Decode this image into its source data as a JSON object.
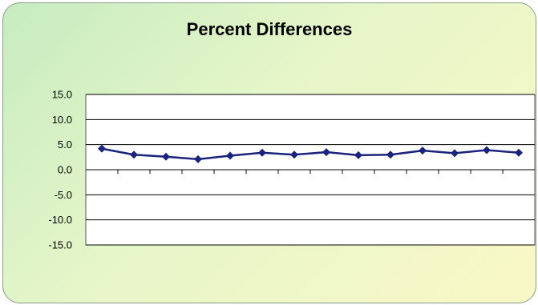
{
  "chart_data": {
    "type": "line",
    "title": "Percent Differences",
    "xlabel": "",
    "ylabel": "",
    "x": [
      1,
      2,
      3,
      4,
      5,
      6,
      7,
      8,
      9,
      10,
      11,
      12,
      13,
      14
    ],
    "series": [
      {
        "values": [
          4.2,
          3.0,
          2.6,
          2.1,
          2.8,
          3.4,
          3.0,
          3.5,
          2.9,
          3.0,
          3.8,
          3.3,
          3.9,
          3.4
        ],
        "color": "#1a237e",
        "marker": "diamond"
      }
    ],
    "ylim": [
      -15,
      15
    ],
    "yticks": [
      "15.0",
      "10.0",
      "5.0",
      "0.0",
      "-5.0",
      "-10.0",
      "-15.0"
    ],
    "grid": true,
    "legend": "none",
    "colors": {
      "background_start": "#c6ecc0",
      "background_end": "#f9f8c6",
      "plot_area": "#ffffff",
      "gridline": "#000000",
      "series": "#1a237e"
    }
  }
}
